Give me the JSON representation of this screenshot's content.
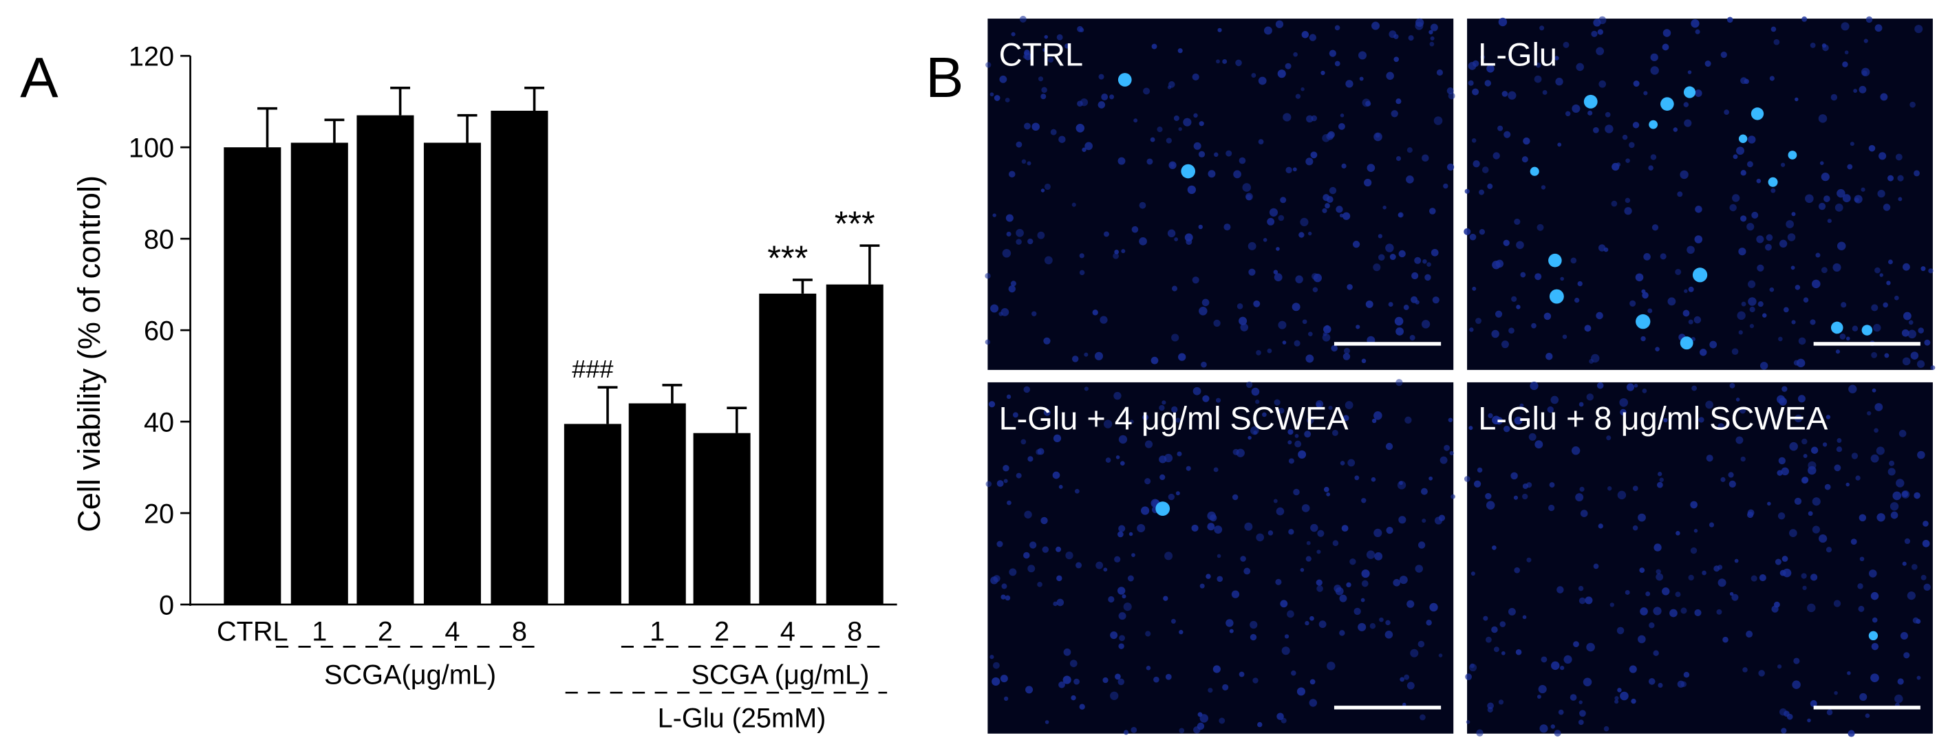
{
  "chart_data": {
    "type": "bar",
    "panel_label": "A",
    "y_label": "Cell viability (% of control)",
    "categories": [
      "CTRL",
      "1",
      "2",
      "4",
      "8",
      null,
      "1",
      "2",
      "4",
      "8"
    ],
    "values": [
      100,
      101,
      107,
      101,
      108,
      39.5,
      44,
      37.5,
      68,
      70
    ],
    "errors": [
      8.5,
      5,
      6,
      6,
      5,
      8,
      4,
      5.5,
      3,
      8.5
    ],
    "annotations": [
      null,
      null,
      null,
      null,
      null,
      "###",
      null,
      null,
      "***",
      "***"
    ],
    "group_labels": [
      "SCGA(μg/mL)",
      "SCGA (μg/mL)",
      "L-Glu (25mM)"
    ],
    "color": "#000000",
    "ylim": [
      0,
      120
    ],
    "yticks": [
      0,
      20,
      40,
      60,
      80,
      100,
      120
    ]
  },
  "panel_b": {
    "label": "B",
    "images": [
      {
        "label": "CTRL"
      },
      {
        "label": "L-Glu"
      },
      {
        "label": "L-Glu + 4 μg/ml SCWEA"
      },
      {
        "label": "L-Glu + 8 μg/ml SCWEA"
      }
    ]
  }
}
